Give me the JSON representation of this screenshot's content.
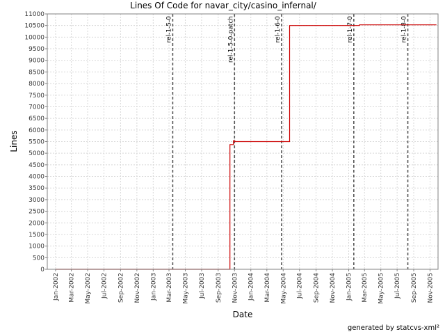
{
  "chart_data": {
    "type": "line",
    "title": "Lines Of Code for navar_city/casino_infernal/",
    "xlabel": "Date",
    "ylabel": "Lines",
    "xlim": [
      "2001-12-01",
      "2005-12-01"
    ],
    "ylim": [
      0,
      11000
    ],
    "y_ticks": [
      0,
      500,
      1000,
      1500,
      2000,
      2500,
      3000,
      3500,
      4000,
      4500,
      5000,
      5500,
      6000,
      6500,
      7000,
      7500,
      8000,
      8500,
      9000,
      9500,
      10000,
      10500,
      11000
    ],
    "x_ticks": [
      {
        "date": "2002-01-01",
        "label": "Jan-2002"
      },
      {
        "date": "2002-03-01",
        "label": "Mar-2002"
      },
      {
        "date": "2002-05-01",
        "label": "May-2002"
      },
      {
        "date": "2002-07-01",
        "label": "Jul-2002"
      },
      {
        "date": "2002-09-01",
        "label": "Sep-2002"
      },
      {
        "date": "2002-11-01",
        "label": "Nov-2002"
      },
      {
        "date": "2003-01-01",
        "label": "Jan-2003"
      },
      {
        "date": "2003-03-01",
        "label": "Mar-2003"
      },
      {
        "date": "2003-05-01",
        "label": "May-2003"
      },
      {
        "date": "2003-07-01",
        "label": "Jul-2003"
      },
      {
        "date": "2003-09-01",
        "label": "Sep-2003"
      },
      {
        "date": "2003-11-01",
        "label": "Nov-2003"
      },
      {
        "date": "2004-01-01",
        "label": "Jan-2004"
      },
      {
        "date": "2004-03-01",
        "label": "Mar-2004"
      },
      {
        "date": "2004-05-01",
        "label": "May-2004"
      },
      {
        "date": "2004-07-01",
        "label": "Jul-2004"
      },
      {
        "date": "2004-09-01",
        "label": "Sep-2004"
      },
      {
        "date": "2004-11-01",
        "label": "Nov-2004"
      },
      {
        "date": "2005-01-01",
        "label": "Jan-2005"
      },
      {
        "date": "2005-03-01",
        "label": "Mar-2005"
      },
      {
        "date": "2005-05-01",
        "label": "May-2005"
      },
      {
        "date": "2005-07-01",
        "label": "Jul-2005"
      },
      {
        "date": "2005-09-01",
        "label": "Sep-2005"
      },
      {
        "date": "2005-11-01",
        "label": "Nov-2005"
      }
    ],
    "series": [
      {
        "color": "#cc0000",
        "step": true,
        "points": [
          {
            "x": "2002-01-01",
            "y": 0
          },
          {
            "x": "2003-10-15",
            "y": 0
          },
          {
            "x": "2003-10-15",
            "y": 5370
          },
          {
            "x": "2003-10-28",
            "y": 5370
          },
          {
            "x": "2003-10-28",
            "y": 5540
          },
          {
            "x": "2003-11-02",
            "y": 5540
          },
          {
            "x": "2003-11-02",
            "y": 5500
          },
          {
            "x": "2004-05-25",
            "y": 5500
          },
          {
            "x": "2004-05-25",
            "y": 10500
          },
          {
            "x": "2005-02-10",
            "y": 10500
          },
          {
            "x": "2005-02-10",
            "y": 10530
          },
          {
            "x": "2005-11-25",
            "y": 10530
          }
        ]
      }
    ],
    "markers": [
      {
        "date": "2003-03-15",
        "label": "rel-1-5-0"
      },
      {
        "date": "2003-11-01",
        "label": "rel-1-5-0-patch"
      },
      {
        "date": "2004-04-25",
        "label": "rel-1-6-0"
      },
      {
        "date": "2005-01-20",
        "label": "rel-1-7-0"
      },
      {
        "date": "2005-08-10",
        "label": "rel-1-8-0"
      }
    ],
    "grid": true,
    "colors": {
      "line": "#cc0000",
      "grid": "#d8d8d8",
      "marker": "#555555"
    }
  },
  "footer": "generated by statcvs-xml²"
}
